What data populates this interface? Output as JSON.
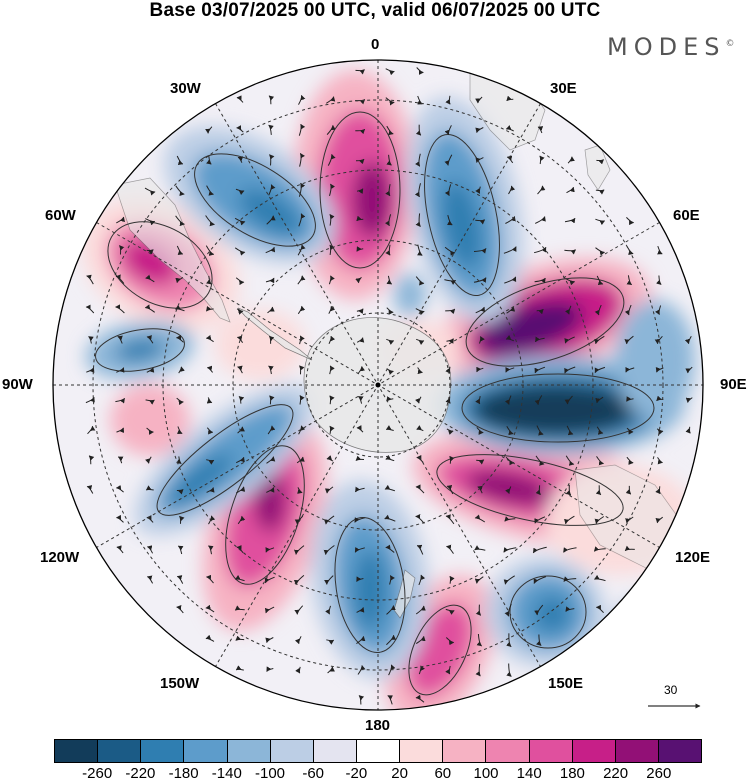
{
  "title": "Base 03/07/2025 00 UTC, valid 06/07/2025 00 UTC",
  "logo": {
    "text": "MODES",
    "mark": "©"
  },
  "lon_labels": {
    "top": "0",
    "bottom": "180",
    "left": "90W",
    "right": "90E",
    "nw_upper": "30W",
    "nw_lower": "60W",
    "sw_upper": "120W",
    "sw_lower": "150W",
    "ne_upper": "30E",
    "ne_lower": "60E",
    "se_upper": "120E",
    "se_lower": "150E"
  },
  "reference_vector": {
    "value": "30"
  },
  "colorbar": {
    "colors": [
      "#123c5a",
      "#1b5b86",
      "#2f7eb1",
      "#5d9ccb",
      "#8cb6d8",
      "#bccee5",
      "#e4e4f0",
      "#ffffff",
      "#fbdcdc",
      "#f6b2c3",
      "#ee84b0",
      "#e0509e",
      "#c71f88",
      "#921076",
      "#581172"
    ],
    "ticks": [
      "-260",
      "-220",
      "-180",
      "-140",
      "-100",
      "-60",
      "-20",
      "20",
      "60",
      "100",
      "140",
      "180",
      "220",
      "260"
    ]
  },
  "palette": {
    "land": "#e8e8e8",
    "grid": "#333333",
    "stream": "#222222"
  }
}
